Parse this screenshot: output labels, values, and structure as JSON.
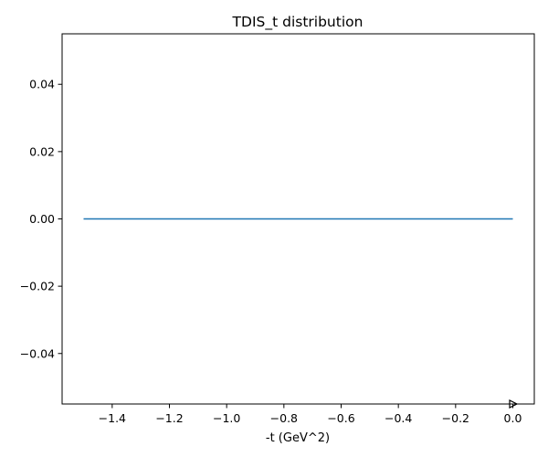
{
  "chart_data": {
    "type": "line",
    "title": "TDIS_t distribution",
    "xlabel": "-t (GeV^2)",
    "ylabel": "",
    "xlim": [
      -1.575,
      0.075
    ],
    "ylim": [
      -0.055,
      0.055
    ],
    "xticks": [
      -1.4,
      -1.2,
      -1.0,
      -0.8,
      -0.6,
      -0.4,
      -0.2,
      0.0
    ],
    "xtick_labels": [
      "−1.4",
      "−1.2",
      "−1.0",
      "−0.8",
      "−0.6",
      "−0.4",
      "−0.2",
      "0.0"
    ],
    "yticks": [
      0.04,
      0.02,
      0.0,
      -0.02,
      -0.04
    ],
    "ytick_labels": [
      "0.04",
      "0.02",
      "0.00",
      "−0.02",
      "−0.04"
    ],
    "grid": false,
    "series": [
      {
        "color": "#1f77b4",
        "x": [
          -1.5,
          0.0
        ],
        "y": [
          0.0,
          0.0
        ]
      }
    ],
    "markers": [
      {
        "shape": "right-triangle-outline",
        "color": "#000000",
        "x": 0.0,
        "y": -0.055
      }
    ]
  }
}
